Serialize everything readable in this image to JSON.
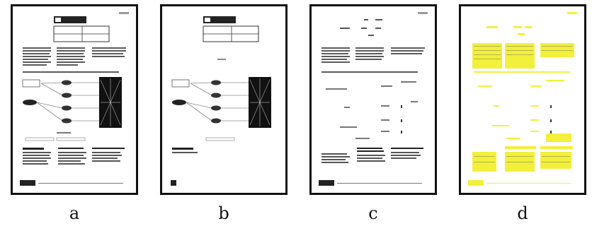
{
  "figure": {
    "labels": [
      "a",
      "b",
      "c",
      "d"
    ]
  },
  "colors": {
    "border": "#111111",
    "page": "#ffffff",
    "text_line": "#4a4a4a",
    "highlight": "#f2f03a"
  }
}
